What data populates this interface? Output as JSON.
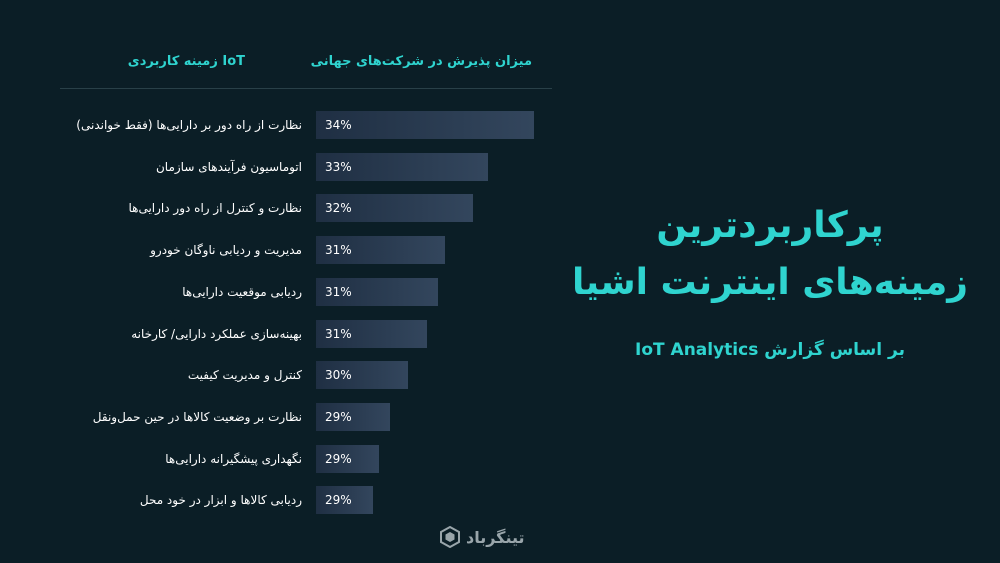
{
  "chart_data": {
    "type": "bar",
    "orientation": "horizontal",
    "column_headers": {
      "category": "زمینه کاربردی IoT",
      "value": "میزان پذیرش در شرکت‌های جهانی"
    },
    "categories": [
      "نظارت از راه دور بر دارایی‌ها (فقط خواندنی)",
      "اتوماسیون فرآیندهای سازمان",
      "نظارت و کنترل از راه دور دارایی‌ها",
      "مدیریت و ردیابی ناوگان خودرو",
      "ردیابی موقعیت دارایی‌ها",
      "بهینه‌سازی عملکرد دارایی/ کارخانه",
      "کنترل و مدیریت کیفیت",
      "نظارت بر وضعیت کالاها در حین حمل‌ونقل",
      "نگهداری پیشگیرانه دارایی‌ها",
      "ردیابی کالاها و ابزار در خود محل"
    ],
    "value_labels": [
      "34%",
      "33%",
      "32%",
      "31%",
      "31%",
      "31%",
      "30%",
      "29%",
      "29%",
      "29%"
    ],
    "values": [
      34,
      33,
      32,
      31,
      31,
      31,
      30,
      29,
      29,
      29
    ],
    "bar_fill_fraction": [
      1.0,
      0.79,
      0.72,
      0.59,
      0.56,
      0.51,
      0.42,
      0.34,
      0.29,
      0.26
    ],
    "bar_color": "#33465d",
    "text_color": "#2fd4cf"
  },
  "side_panel": {
    "title_line1": "پرکاربردترین",
    "title_line2": "زمینه‌های اینترنت اشیا",
    "subtitle": "بر اساس گزارش IoT Analytics"
  },
  "logo": {
    "text": "تینگرباد",
    "icon": "hexagon-logo-icon"
  }
}
